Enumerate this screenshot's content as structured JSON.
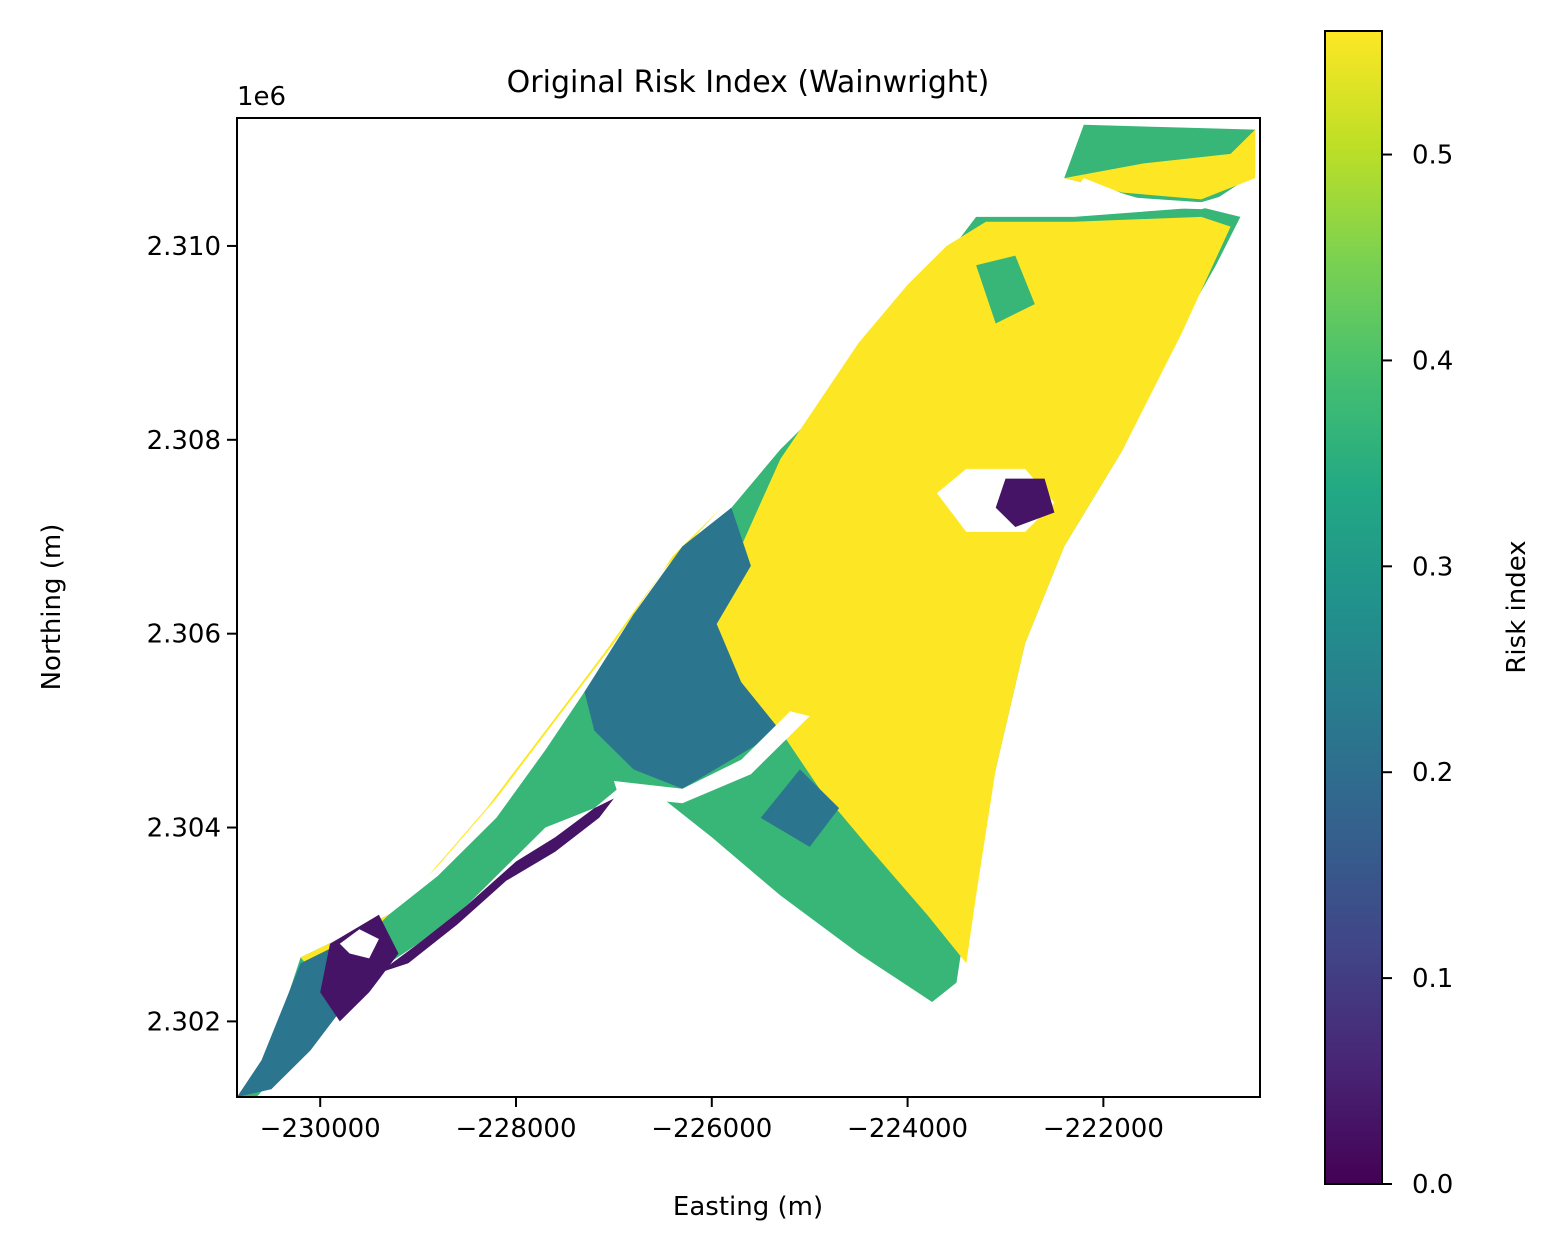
{
  "chart_data": {
    "type": "heatmap",
    "title": "Original Risk Index (Wainwright)",
    "xlabel": "Easting (m)",
    "ylabel": "Northing (m)",
    "y_offset_label": "1e6",
    "xlim": [
      -230850,
      -220400
    ],
    "ylim": [
      2301220,
      2311320
    ],
    "x_ticks": [
      -230000,
      -228000,
      -226000,
      -224000,
      -222000
    ],
    "x_tick_labels": [
      "−230000",
      "−228000",
      "−226000",
      "−224000",
      "−222000"
    ],
    "y_ticks": [
      2302000,
      2304000,
      2306000,
      2308000,
      2310000
    ],
    "y_tick_labels": [
      "2.302",
      "2.304",
      "2.306",
      "2.308",
      "2.310"
    ],
    "grid": false,
    "colormap": "viridis",
    "colorbar": {
      "label": "Risk index",
      "vmin": 0.0,
      "vmax": 0.56,
      "ticks": [
        0.0,
        0.1,
        0.2,
        0.3,
        0.4,
        0.5
      ],
      "tick_labels": [
        "0.0",
        "0.1",
        "0.2",
        "0.3",
        "0.4",
        "0.5"
      ]
    },
    "regions": [
      {
        "name": "base",
        "value": 0.37,
        "polygon": [
          [
            -230850,
            2301220
          ],
          [
            -230700,
            2301380
          ],
          [
            -230500,
            2301750
          ],
          [
            -230400,
            2302050
          ],
          [
            -230200,
            2302660
          ],
          [
            -229300,
            2303100
          ],
          [
            -228800,
            2303500
          ],
          [
            -228200,
            2304100
          ],
          [
            -227700,
            2304800
          ],
          [
            -227300,
            2305400
          ],
          [
            -226800,
            2306100
          ],
          [
            -226300,
            2306800
          ],
          [
            -225800,
            2307300
          ],
          [
            -225300,
            2307900
          ],
          [
            -224800,
            2308400
          ],
          [
            -224400,
            2308900
          ],
          [
            -224000,
            2309500
          ],
          [
            -223600,
            2309900
          ],
          [
            -223300,
            2310300
          ],
          [
            -222300,
            2310300
          ],
          [
            -221000,
            2310400
          ],
          [
            -220600,
            2310300
          ],
          [
            -220850,
            2309800
          ],
          [
            -221300,
            2309000
          ],
          [
            -221800,
            2307900
          ],
          [
            -222400,
            2306900
          ],
          [
            -222800,
            2305900
          ],
          [
            -223100,
            2304600
          ],
          [
            -223350,
            2303400
          ],
          [
            -223500,
            2302400
          ],
          [
            -223750,
            2302200
          ],
          [
            -224500,
            2302700
          ],
          [
            -225300,
            2303300
          ],
          [
            -226000,
            2303900
          ],
          [
            -226500,
            2304300
          ],
          [
            -226900,
            2304450
          ],
          [
            -227200,
            2304200
          ],
          [
            -227700,
            2304000
          ],
          [
            -228000,
            2303700
          ],
          [
            -228500,
            2303200
          ],
          [
            -229000,
            2302800
          ],
          [
            -229600,
            2302400
          ],
          [
            -230000,
            2301900
          ],
          [
            -230400,
            2301500
          ],
          [
            -230650,
            2301220
          ]
        ]
      },
      {
        "name": "north-strip",
        "value": 0.37,
        "polygon": [
          [
            -222400,
            2310700
          ],
          [
            -222200,
            2311250
          ],
          [
            -220450,
            2311200
          ],
          [
            -220450,
            2310750
          ],
          [
            -220900,
            2310450
          ],
          [
            -221500,
            2310450
          ],
          [
            -222000,
            2310600
          ]
        ]
      },
      {
        "name": "north-strip-yellow",
        "value": 0.56,
        "polygon": [
          [
            -222400,
            2310700
          ],
          [
            -221600,
            2310850
          ],
          [
            -220700,
            2310950
          ],
          [
            -220450,
            2311200
          ],
          [
            -220450,
            2310700
          ],
          [
            -221000,
            2310480
          ],
          [
            -221800,
            2310550
          ]
        ]
      },
      {
        "name": "east-high",
        "value": 0.56,
        "polygon": [
          [
            -226000,
            2306100
          ],
          [
            -225700,
            2306900
          ],
          [
            -225300,
            2307800
          ],
          [
            -224900,
            2308400
          ],
          [
            -224500,
            2309000
          ],
          [
            -224000,
            2309600
          ],
          [
            -223600,
            2310000
          ],
          [
            -223200,
            2310250
          ],
          [
            -222300,
            2310250
          ],
          [
            -221000,
            2310300
          ],
          [
            -220700,
            2310200
          ],
          [
            -221200,
            2309100
          ],
          [
            -221800,
            2307900
          ],
          [
            -222400,
            2306900
          ],
          [
            -222800,
            2305900
          ],
          [
            -223100,
            2304600
          ],
          [
            -223300,
            2303300
          ],
          [
            -223400,
            2302600
          ],
          [
            -223800,
            2303100
          ],
          [
            -224400,
            2303800
          ],
          [
            -224900,
            2304400
          ],
          [
            -225300,
            2305000
          ],
          [
            -225800,
            2305500
          ]
        ]
      },
      {
        "name": "west-coast-yellow",
        "value": 0.56,
        "polygon": [
          [
            -230200,
            2302660
          ],
          [
            -229300,
            2303100
          ],
          [
            -228800,
            2303600
          ],
          [
            -228200,
            2304300
          ],
          [
            -227600,
            2305100
          ],
          [
            -227000,
            2305900
          ],
          [
            -226400,
            2306800
          ],
          [
            -225800,
            2307400
          ],
          [
            -225900,
            2307300
          ],
          [
            -226500,
            2306650
          ],
          [
            -227100,
            2305800
          ],
          [
            -227700,
            2305000
          ],
          [
            -228300,
            2304200
          ],
          [
            -228900,
            2303500
          ],
          [
            -229400,
            2303000
          ],
          [
            -230150,
            2302600
          ]
        ]
      },
      {
        "name": "central-medium",
        "value": 0.22,
        "polygon": [
          [
            -227300,
            2305400
          ],
          [
            -226800,
            2306200
          ],
          [
            -226300,
            2306900
          ],
          [
            -225800,
            2307300
          ],
          [
            -225600,
            2306700
          ],
          [
            -225950,
            2306100
          ],
          [
            -225700,
            2305500
          ],
          [
            -225300,
            2305000
          ],
          [
            -225800,
            2304700
          ],
          [
            -226300,
            2304400
          ],
          [
            -226800,
            2304600
          ],
          [
            -227200,
            2305000
          ]
        ]
      },
      {
        "name": "sw-medium",
        "value": 0.22,
        "polygon": [
          [
            -230850,
            2301220
          ],
          [
            -230600,
            2301600
          ],
          [
            -230400,
            2302100
          ],
          [
            -230200,
            2302600
          ],
          [
            -229700,
            2302850
          ],
          [
            -229500,
            2302500
          ],
          [
            -229800,
            2302100
          ],
          [
            -230100,
            2301700
          ],
          [
            -230500,
            2301300
          ]
        ]
      },
      {
        "name": "sw-low",
        "value": 0.03,
        "polygon": [
          [
            -230000,
            2302300
          ],
          [
            -229900,
            2302800
          ],
          [
            -229400,
            2303100
          ],
          [
            -229200,
            2302700
          ],
          [
            -229500,
            2302300
          ],
          [
            -229800,
            2302000
          ]
        ]
      },
      {
        "name": "south-edge-low",
        "value": 0.03,
        "polygon": [
          [
            -229400,
            2302500
          ],
          [
            -229000,
            2302800
          ],
          [
            -228500,
            2303200
          ],
          [
            -228000,
            2303650
          ],
          [
            -227600,
            2303900
          ],
          [
            -227200,
            2304200
          ],
          [
            -227000,
            2304300
          ],
          [
            -227150,
            2304100
          ],
          [
            -227600,
            2303750
          ],
          [
            -228100,
            2303450
          ],
          [
            -228600,
            2303000
          ],
          [
            -229100,
            2302600
          ]
        ]
      },
      {
        "name": "se-medium",
        "value": 0.22,
        "polygon": [
          [
            -225500,
            2304100
          ],
          [
            -225000,
            2303800
          ],
          [
            -224700,
            2304200
          ],
          [
            -225100,
            2304600
          ]
        ]
      },
      {
        "name": "ne-medium",
        "value": 0.37,
        "polygon": [
          [
            -223300,
            2309800
          ],
          [
            -222900,
            2309900
          ],
          [
            -222700,
            2309400
          ],
          [
            -223100,
            2309200
          ]
        ]
      },
      {
        "name": "hole-central",
        "value": null,
        "polygon": [
          [
            -223700,
            2307450
          ],
          [
            -223400,
            2307700
          ],
          [
            -222800,
            2307700
          ],
          [
            -222500,
            2307350
          ],
          [
            -222800,
            2307050
          ],
          [
            -223400,
            2307050
          ]
        ]
      },
      {
        "name": "hole-central-low",
        "value": 0.03,
        "polygon": [
          [
            -223000,
            2307600
          ],
          [
            -222600,
            2307600
          ],
          [
            -222500,
            2307250
          ],
          [
            -222900,
            2307100
          ],
          [
            -223100,
            2307300
          ]
        ]
      },
      {
        "name": "hole-river",
        "value": null,
        "polygon": [
          [
            -227000,
            2304480
          ],
          [
            -226300,
            2304400
          ],
          [
            -225700,
            2304700
          ],
          [
            -225200,
            2305200
          ],
          [
            -225000,
            2305150
          ],
          [
            -225600,
            2304550
          ],
          [
            -226300,
            2304250
          ],
          [
            -226950,
            2304320
          ]
        ]
      },
      {
        "name": "hole-north-channel",
        "value": null,
        "polygon": [
          [
            -222200,
            2310700
          ],
          [
            -221700,
            2310500
          ],
          [
            -221000,
            2310450
          ],
          [
            -220500,
            2310600
          ],
          [
            -220500,
            2310500
          ],
          [
            -221000,
            2310380
          ],
          [
            -221700,
            2310400
          ],
          [
            -222300,
            2310550
          ]
        ]
      },
      {
        "name": "hole-sw",
        "value": null,
        "polygon": [
          [
            -229800,
            2302800
          ],
          [
            -229600,
            2302950
          ],
          [
            -229400,
            2302850
          ],
          [
            -229500,
            2302650
          ],
          [
            -229700,
            2302700
          ]
        ]
      }
    ]
  }
}
